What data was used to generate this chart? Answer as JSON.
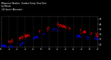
{
  "title": "Milwaukee Weather  Outdoor Temp / Dew Point\nby Minute\n(24 Hours) (Alternate)",
  "bg_color": "#000000",
  "plot_bg_color": "#000000",
  "temp_color": "#dd0000",
  "dew_color": "#0000ee",
  "grid_color": "#555555",
  "text_color": "#ffffff",
  "ylim": [
    15,
    75
  ],
  "yticks": [
    20,
    30,
    40,
    50,
    60,
    70
  ],
  "n_points": 1440,
  "seed": 7
}
